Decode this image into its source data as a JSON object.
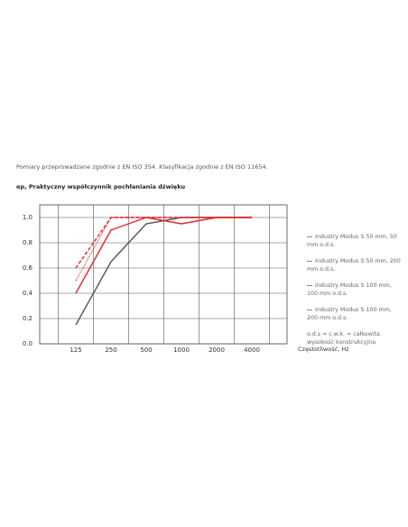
{
  "chart_data": {
    "type": "line",
    "intro": "Pomiary przeprowadzane zgodnie z EN ISO 354. Klasyfikacja zgodnie z EN ISO 11654.",
    "y_label": "αp, Praktyczny współczynnik pochłaniania dźwięku",
    "x_label": "Częstotliwość, Hz",
    "note": "o.d.s = c.w.k. = całkowita wysokość konstrukcyjna",
    "categories": [
      "125",
      "250",
      "500",
      "1000",
      "2000",
      "4000"
    ],
    "series": [
      {
        "name": "Industry Modus S 50 mm, 50 mm o.d.s.",
        "color": "#555555",
        "style": "solid",
        "values": [
          0.15,
          0.65,
          0.95,
          1.0,
          1.0,
          1.0
        ]
      },
      {
        "name": "Industry Modus S 50 mm, 200 mm o.d.s.",
        "color": "#e3262d",
        "style": "solid",
        "values": [
          0.4,
          0.9,
          1.0,
          0.95,
          1.0,
          1.0
        ]
      },
      {
        "name": "Industry Modus S 100 mm, 100 mm o.d.s.",
        "color": "#e3262d",
        "style": "dotted",
        "values": [
          0.5,
          1.0,
          1.0,
          1.0,
          1.0,
          1.0
        ]
      },
      {
        "name": "Industry Modus S 100 mm, 200 mm o.d.s.",
        "color": "#e3262d",
        "style": "dashed",
        "values": [
          0.6,
          1.0,
          1.0,
          1.0,
          1.0,
          1.0
        ]
      }
    ],
    "ylim": [
      0,
      1.1
    ],
    "yticks": [
      {
        "value": 0,
        "label": "0.0"
      },
      0.2,
      0.4,
      0.6,
      0.8,
      {
        "value": 1,
        "label": "1.0"
      }
    ],
    "grid": true
  }
}
